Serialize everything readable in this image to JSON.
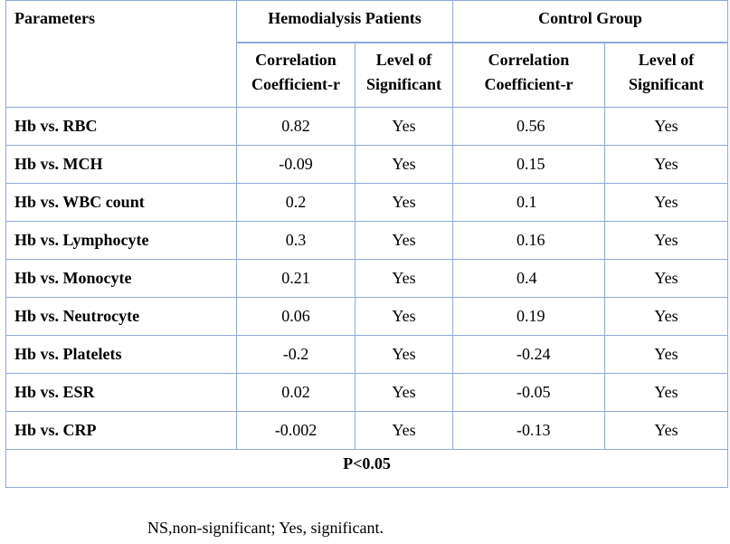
{
  "table": {
    "headers": {
      "parameters": "Parameters",
      "group1": "Hemodialysis Patients",
      "group2": "Control Group",
      "corr_line1": "Correlation",
      "corr_line2": "Coefficient-r",
      "sig_line1": "Level of",
      "sig_line2": "Significant"
    },
    "rows": [
      {
        "param": "Hb vs. RBC",
        "hd_r": "0.82",
        "hd_sig": "Yes",
        "ctrl_r": "0.56",
        "ctrl_sig": "Yes"
      },
      {
        "param": "Hb vs. MCH",
        "hd_r": "-0.09",
        "hd_sig": "Yes",
        "ctrl_r": "0.15",
        "ctrl_sig": "Yes"
      },
      {
        "param": "Hb vs. WBC count",
        "hd_r": "0.2",
        "hd_sig": "Yes",
        "ctrl_r": "0.1",
        "ctrl_sig": "Yes"
      },
      {
        "param": "Hb vs. Lymphocyte",
        "hd_r": "0.3",
        "hd_sig": "Yes",
        "ctrl_r": "0.16",
        "ctrl_sig": "Yes"
      },
      {
        "param": "Hb vs. Monocyte",
        "hd_r": "0.21",
        "hd_sig": "Yes",
        "ctrl_r": "0.4",
        "ctrl_sig": "Yes"
      },
      {
        "param": "Hb vs. Neutrocyte",
        "hd_r": "0.06",
        "hd_sig": "Yes",
        "ctrl_r": "0.19",
        "ctrl_sig": "Yes"
      },
      {
        "param": "Hb vs. Platelets",
        "hd_r": "-0.2",
        "hd_sig": "Yes",
        "ctrl_r": "-0.24",
        "ctrl_sig": "Yes"
      },
      {
        "param": "Hb vs. ESR",
        "hd_r": "0.02",
        "hd_sig": "Yes",
        "ctrl_r": "-0.05",
        "ctrl_sig": "Yes"
      },
      {
        "param": "Hb vs. CRP",
        "hd_r": "-0.002",
        "hd_sig": "Yes",
        "ctrl_r": "-0.13",
        "ctrl_sig": "Yes"
      }
    ],
    "footer": "P<0.05"
  },
  "note": "NS,non-significant; Yes, significant.",
  "colors": {
    "border": "#8eaadb"
  }
}
